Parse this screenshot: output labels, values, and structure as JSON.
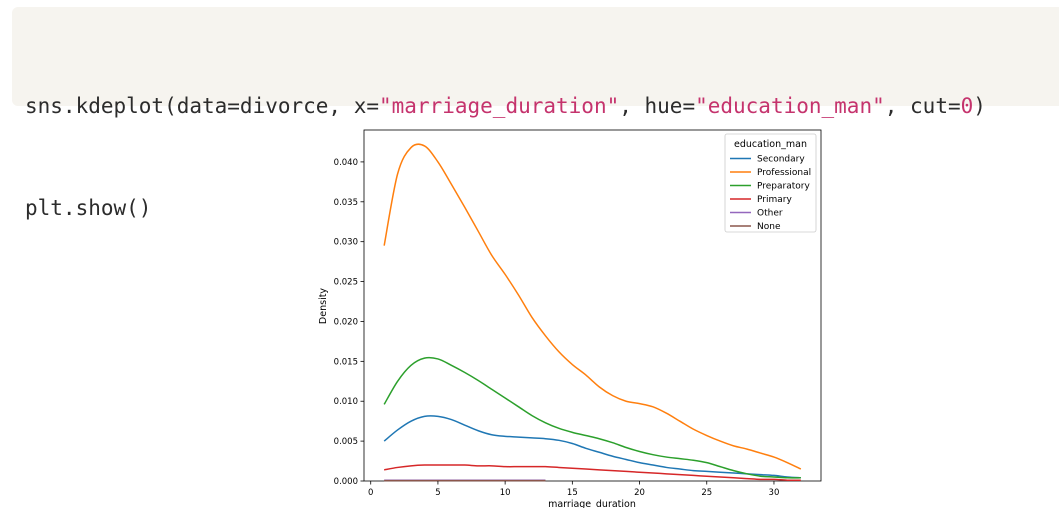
{
  "code": {
    "line1": {
      "call": "sns.kdeplot(data=divorce, x=",
      "x_arg": "\"marriage_duration\"",
      "sep": ", hue=",
      "hue_arg": "\"education_man\"",
      "cut_kw": ", cut=",
      "cut_val": "0",
      "close": ")"
    },
    "line2": "plt.show()"
  },
  "chart_data": {
    "type": "line",
    "title": "",
    "xlabel": "marriage_duration",
    "ylabel": "Density",
    "xlim": [
      -0.5,
      33.5
    ],
    "ylim": [
      0,
      0.044
    ],
    "xticks": [
      "0",
      "5",
      "10",
      "15",
      "20",
      "25",
      "30"
    ],
    "yticks": [
      "0.000",
      "0.005",
      "0.010",
      "0.015",
      "0.020",
      "0.025",
      "0.030",
      "0.035",
      "0.040"
    ],
    "grid": false,
    "legend": {
      "title": "education_man",
      "placement": "top-right"
    },
    "series": [
      {
        "name": "Secondary",
        "color": "#1f77b4",
        "x": [
          1,
          2,
          3,
          4,
          5,
          6,
          7,
          8,
          9,
          10,
          11,
          12,
          13,
          14,
          15,
          16,
          17,
          18,
          19,
          20,
          21,
          22,
          23,
          24,
          25,
          26,
          27,
          28,
          29,
          30,
          31,
          32
        ],
        "y": [
          0.005,
          0.0064,
          0.0075,
          0.0081,
          0.0081,
          0.0077,
          0.007,
          0.0063,
          0.0058,
          0.0056,
          0.0055,
          0.0054,
          0.0053,
          0.0051,
          0.0047,
          0.0041,
          0.0036,
          0.0031,
          0.0027,
          0.0023,
          0.002,
          0.0017,
          0.0015,
          0.0013,
          0.0012,
          0.0011,
          0.001,
          0.0009,
          0.0008,
          0.0007,
          0.0005,
          0.0004
        ]
      },
      {
        "name": "Professional",
        "color": "#ff7f0e",
        "x": [
          1,
          2,
          3,
          4,
          5,
          6,
          7,
          8,
          9,
          10,
          11,
          12,
          13,
          14,
          15,
          16,
          17,
          18,
          19,
          20,
          21,
          22,
          23,
          24,
          25,
          26,
          27,
          28,
          29,
          30,
          31,
          32
        ],
        "y": [
          0.0295,
          0.0385,
          0.0418,
          0.042,
          0.04,
          0.0372,
          0.0343,
          0.0313,
          0.0283,
          0.0259,
          0.0233,
          0.0205,
          0.0182,
          0.0162,
          0.0146,
          0.0133,
          0.0118,
          0.0107,
          0.01,
          0.0097,
          0.0093,
          0.0085,
          0.0075,
          0.0065,
          0.0057,
          0.005,
          0.0044,
          0.004,
          0.0035,
          0.003,
          0.0023,
          0.0015
        ]
      },
      {
        "name": "Preparatory",
        "color": "#2ca02c",
        "x": [
          1,
          2,
          3,
          4,
          5,
          6,
          7,
          8,
          9,
          10,
          11,
          12,
          13,
          14,
          15,
          16,
          17,
          18,
          19,
          20,
          21,
          22,
          23,
          24,
          25,
          26,
          27,
          28,
          29,
          30,
          31,
          32
        ],
        "y": [
          0.0096,
          0.0125,
          0.0145,
          0.0154,
          0.0153,
          0.0145,
          0.0136,
          0.0126,
          0.0115,
          0.0104,
          0.0093,
          0.0082,
          0.0073,
          0.0066,
          0.0061,
          0.0057,
          0.0053,
          0.0048,
          0.0042,
          0.0037,
          0.0033,
          0.003,
          0.0028,
          0.0026,
          0.0023,
          0.0018,
          0.0013,
          0.0009,
          0.0006,
          0.0005,
          0.0004,
          0.0004
        ]
      },
      {
        "name": "Primary",
        "color": "#d62728",
        "x": [
          1,
          2,
          3,
          4,
          5,
          6,
          7,
          8,
          9,
          10,
          11,
          12,
          13,
          14,
          15,
          16,
          17,
          18,
          19,
          20,
          21,
          22,
          23,
          24,
          25,
          26,
          27,
          28,
          29,
          30,
          31,
          32
        ],
        "y": [
          0.0014,
          0.0017,
          0.0019,
          0.002,
          0.002,
          0.002,
          0.002,
          0.0019,
          0.0019,
          0.0018,
          0.0018,
          0.0018,
          0.0018,
          0.0017,
          0.0016,
          0.0015,
          0.0014,
          0.0013,
          0.0012,
          0.0011,
          0.001,
          0.0009,
          0.0008,
          0.0007,
          0.0006,
          0.0005,
          0.0004,
          0.0003,
          0.0002,
          0.0002,
          0.0001,
          0.0001
        ]
      },
      {
        "name": "Other",
        "color": "#9467bd",
        "x": [
          1,
          5,
          9,
          13
        ],
        "y": [
          0.0001,
          0.0001,
          0.0001,
          0.0001
        ]
      },
      {
        "name": "None",
        "color": "#8c564b",
        "x": [
          1,
          5,
          9,
          13
        ],
        "y": [
          5e-05,
          5e-05,
          5e-05,
          5e-05
        ]
      }
    ]
  }
}
